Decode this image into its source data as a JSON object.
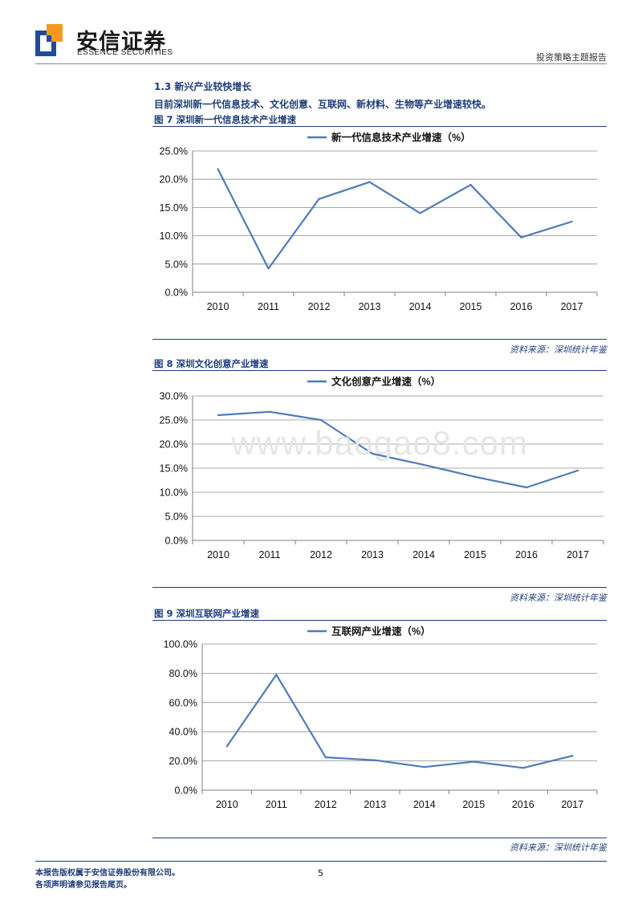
{
  "header": {
    "brand_cn": "安信证券",
    "brand_en": "ESSENCE SECURITIES",
    "report_type": "投资策略主题报告",
    "colors": {
      "accent": "#1f3d7a",
      "logo_blue": "#1e4c9a",
      "logo_orange": "#f39a1e"
    }
  },
  "section": {
    "title": "1.3 新兴产业较快增长",
    "lead": "目前深圳新一代信息技术、文化创意、互联网、新材料、生物等产业增速较快。"
  },
  "watermark": "www.baogao8.com",
  "figures": [
    {
      "caption": "图 7 深圳新一代信息技术产业增速",
      "source": "资料来源：深圳统计年鉴"
    },
    {
      "caption": "图 8 深圳文化创意产业增速",
      "source": "资料来源：深圳统计年鉴"
    },
    {
      "caption": "图 9 深圳互联网产业增速",
      "source": "资料来源：深圳统计年鉴"
    }
  ],
  "chart_data": [
    {
      "type": "line",
      "categories": [
        "2010",
        "2011",
        "2012",
        "2013",
        "2014",
        "2015",
        "2016",
        "2017"
      ],
      "series": [
        {
          "name": "新一代信息技术产业增速（%）",
          "values": [
            21.8,
            4.2,
            16.5,
            19.5,
            14.0,
            19.0,
            9.7,
            12.5
          ]
        }
      ],
      "ylim": [
        0,
        25
      ],
      "yticks": [
        0,
        5,
        10,
        15,
        20,
        25
      ],
      "ytick_labels": [
        "0.0%",
        "5.0%",
        "10.0%",
        "15.0%",
        "20.0%",
        "25.0%"
      ],
      "grid": true,
      "legend": "top-center",
      "color": "#4f7bb8"
    },
    {
      "type": "line",
      "categories": [
        "2010",
        "2011",
        "2012",
        "2013",
        "2014",
        "2015",
        "2016",
        "2017"
      ],
      "series": [
        {
          "name": "文化创意产业增速（%）",
          "values": [
            26.0,
            26.7,
            25.0,
            18.0,
            15.7,
            13.2,
            11.0,
            14.5
          ]
        }
      ],
      "ylim": [
        0,
        30
      ],
      "yticks": [
        0,
        5,
        10,
        15,
        20,
        25,
        30
      ],
      "ytick_labels": [
        "0.0%",
        "5.0%",
        "10.0%",
        "15.0%",
        "20.0%",
        "25.0%",
        "30.0%"
      ],
      "grid": true,
      "legend": "top-center",
      "color": "#4f7bb8"
    },
    {
      "type": "line",
      "categories": [
        "2010",
        "2011",
        "2012",
        "2013",
        "2014",
        "2015",
        "2016",
        "2017"
      ],
      "series": [
        {
          "name": "互联网产业增速（%）",
          "values": [
            30.0,
            79.0,
            22.5,
            20.5,
            15.8,
            19.5,
            15.2,
            23.5
          ]
        }
      ],
      "ylim": [
        0,
        100
      ],
      "yticks": [
        0,
        20,
        40,
        60,
        80,
        100
      ],
      "ytick_labels": [
        "0.0%",
        "20.0%",
        "40.0%",
        "60.0%",
        "80.0%",
        "100.0%"
      ],
      "grid": true,
      "legend": "top-center",
      "color": "#4f7bb8"
    }
  ],
  "footer": {
    "copyright": "本报告版权属于安信证券股份有限公司。",
    "disclaimer": "各项声明请参见报告尾页。",
    "page_number": "5"
  }
}
